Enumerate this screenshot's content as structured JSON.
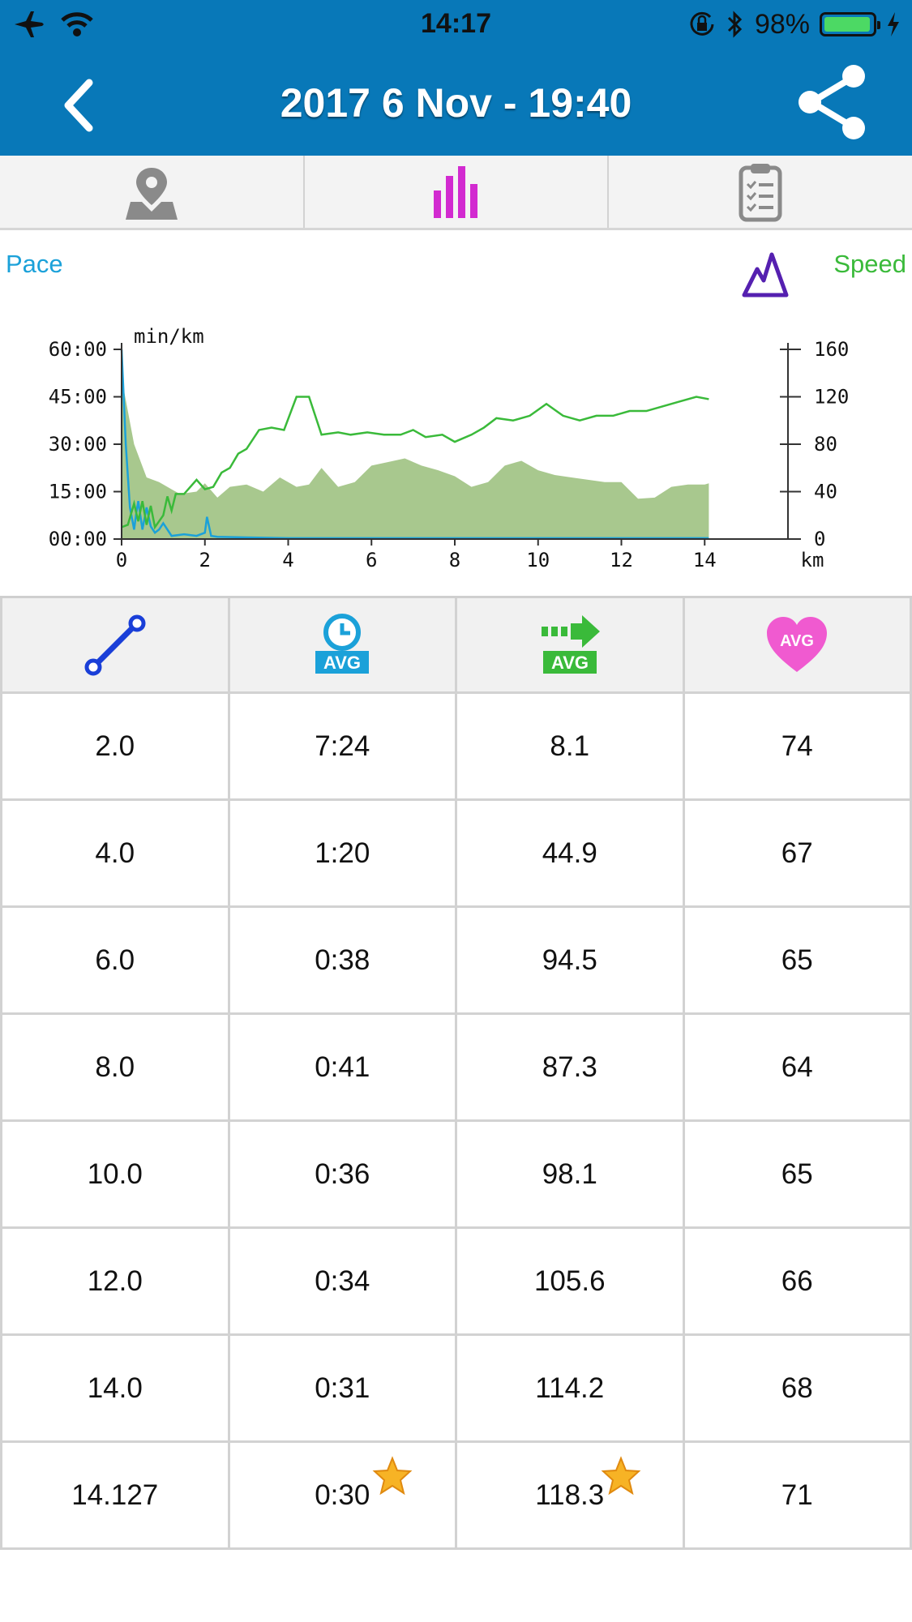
{
  "status_bar": {
    "time": "14:17",
    "battery_percent": "98%",
    "icons": [
      "airplane-icon",
      "wifi-icon",
      "orientation-lock-icon",
      "bluetooth-icon",
      "battery-icon",
      "charging-icon"
    ]
  },
  "nav": {
    "title": "2017 6 Nov - 19:40",
    "back_icon": "chevron-left-icon",
    "share_icon": "share-icon"
  },
  "tabs": [
    {
      "icon": "map-pin-icon",
      "selected": false
    },
    {
      "icon": "bar-chart-icon",
      "selected": true
    },
    {
      "icon": "clipboard-checklist-icon",
      "selected": false
    }
  ],
  "chart_labels": {
    "pace": "Pace",
    "speed": "Speed",
    "altitude_toggle_icon": "mountain-icon"
  },
  "chart_data": {
    "type": "line",
    "ylabel": "min/km",
    "xlabel": "km",
    "x_ticks": [
      "0",
      "2",
      "4",
      "6",
      "8",
      "10",
      "12",
      "14"
    ],
    "y_left_ticks": [
      "60:00",
      "45:00",
      "30:00",
      "15:00",
      "00:00"
    ],
    "y_right_ticks": [
      "160",
      "120",
      "80",
      "40",
      "0"
    ],
    "xlim": [
      0,
      16
    ],
    "ylim_left_minutes": [
      0,
      60
    ],
    "ylim_right": [
      0,
      160
    ],
    "colors": {
      "pace": "#1ba1d9",
      "speed": "#3aba3a",
      "altitude": "#a8c88e"
    },
    "series": [
      {
        "axis": "right",
        "color": "#a8c88e",
        "x": [
          0,
          0.3,
          0.6,
          0.9,
          1.2,
          1.4,
          1.8,
          2.0,
          2.3,
          2.6,
          3.0,
          3.4,
          3.8,
          4.2,
          4.5,
          4.8,
          5.2,
          5.6,
          6.0,
          6.4,
          6.8,
          7.2,
          7.6,
          8.0,
          8.4,
          8.8,
          9.2,
          9.6,
          10.0,
          10.4,
          10.8,
          11.2,
          11.6,
          12.0,
          12.4,
          12.8,
          13.2,
          13.6,
          14.0,
          14.1
        ],
        "values": [
          136,
          80,
          52,
          48,
          42,
          38,
          40,
          47,
          35,
          44,
          46,
          40,
          52,
          44,
          46,
          60,
          44,
          48,
          62,
          65,
          68,
          62,
          58,
          53,
          44,
          48,
          62,
          66,
          58,
          54,
          52,
          50,
          48,
          48,
          34,
          35,
          44,
          46,
          46,
          47
        ]
      },
      {
        "axis": "left_minutes",
        "color": "#1ba1d9",
        "x": [
          0,
          0.1,
          0.2,
          0.3,
          0.35,
          0.4,
          0.5,
          0.6,
          0.7,
          0.8,
          0.9,
          1.0,
          1.1,
          1.2,
          1.5,
          1.8,
          2.0,
          2.05,
          2.15,
          2.3,
          3.0,
          4.0,
          6.0,
          8.0,
          10.0,
          12.0,
          14.0,
          14.1
        ],
        "values": [
          60,
          30,
          10,
          3,
          8,
          12,
          3,
          10,
          4,
          2,
          3,
          5,
          3,
          1,
          1.5,
          1,
          2,
          7,
          1,
          0.7,
          0.5,
          0.3,
          0.3,
          0.3,
          0.3,
          0.3,
          0.3,
          0.3
        ]
      },
      {
        "axis": "right",
        "color": "#3aba3a",
        "x": [
          0,
          0.15,
          0.3,
          0.4,
          0.5,
          0.6,
          0.7,
          0.8,
          0.9,
          1.0,
          1.1,
          1.2,
          1.3,
          1.5,
          1.8,
          2.0,
          2.2,
          2.4,
          2.6,
          2.8,
          3.0,
          3.3,
          3.6,
          3.9,
          4.2,
          4.5,
          4.8,
          5.2,
          5.5,
          5.9,
          6.3,
          6.7,
          7.0,
          7.3,
          7.7,
          8.0,
          8.4,
          8.7,
          9.0,
          9.4,
          9.8,
          10.2,
          10.6,
          11.0,
          11.4,
          11.8,
          12.2,
          12.6,
          13.0,
          13.4,
          13.8,
          14.1
        ],
        "values": [
          10,
          12,
          30,
          15,
          32,
          12,
          28,
          10,
          15,
          20,
          36,
          24,
          38,
          38,
          50,
          42,
          44,
          56,
          60,
          72,
          76,
          92,
          94,
          92,
          120,
          120,
          88,
          90,
          88,
          90,
          88,
          88,
          92,
          86,
          88,
          82,
          88,
          94,
          102,
          100,
          104,
          114,
          104,
          100,
          104,
          104,
          108,
          108,
          112,
          116,
          120,
          118
        ]
      }
    ]
  },
  "table": {
    "header_icons": [
      "distance-icon",
      "avg-pace-clock-icon",
      "avg-speed-arrow-icon",
      "avg-heart-rate-icon"
    ],
    "header_badges": [
      "AVG",
      "AVG",
      "AVG"
    ],
    "rows": [
      {
        "distance": "2.0",
        "pace": "7:24",
        "speed": "8.1",
        "hr": "74"
      },
      {
        "distance": "4.0",
        "pace": "1:20",
        "speed": "44.9",
        "hr": "67"
      },
      {
        "distance": "6.0",
        "pace": "0:38",
        "speed": "94.5",
        "hr": "65"
      },
      {
        "distance": "8.0",
        "pace": "0:41",
        "speed": "87.3",
        "hr": "64"
      },
      {
        "distance": "10.0",
        "pace": "0:36",
        "speed": "98.1",
        "hr": "65"
      },
      {
        "distance": "12.0",
        "pace": "0:34",
        "speed": "105.6",
        "hr": "66"
      },
      {
        "distance": "14.0",
        "pace": "0:31",
        "speed": "114.2",
        "hr": "68"
      },
      {
        "distance": "14.127",
        "pace": "0:30",
        "speed": "118.3",
        "hr": "71"
      }
    ],
    "best_marker_icon": "star-icon"
  }
}
